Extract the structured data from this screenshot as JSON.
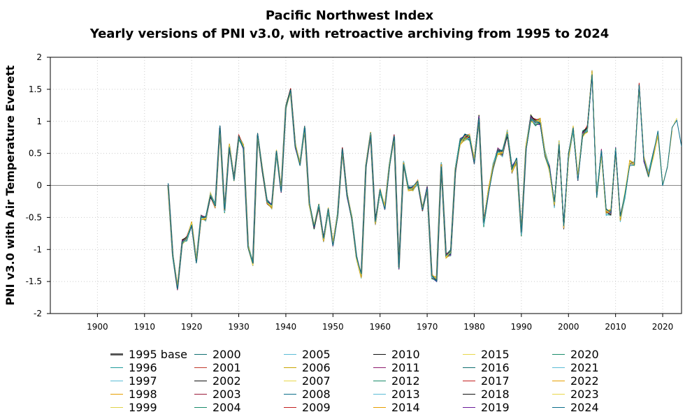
{
  "title": "Pacific Northwest Index",
  "subtitle": "Yearly versions of PNI v3.0, with retroactive archiving from 1995 to 2024",
  "chart_data": {
    "type": "line",
    "title": "Pacific Northwest Index",
    "subtitle": "Yearly versions of PNI v3.0, with retroactive archiving from 1995 to 2024",
    "xlabel": "",
    "ylabel": "PNI v3.0 with Air Temperature Everett",
    "xlim": [
      1890,
      2024
    ],
    "ylim": [
      -2,
      2
    ],
    "grid": true,
    "zero_line": true,
    "xticks": [
      1900,
      1910,
      1920,
      1930,
      1940,
      1950,
      1960,
      1970,
      1980,
      1990,
      2000,
      2010,
      2020
    ],
    "yticks": [
      2,
      1.5,
      1,
      0.5,
      0,
      -0.5,
      -1,
      -1.5,
      -2
    ],
    "legend_position": "bottom",
    "x": [
      1915,
      1916,
      1917,
      1918,
      1919,
      1920,
      1921,
      1922,
      1923,
      1924,
      1925,
      1926,
      1927,
      1928,
      1929,
      1930,
      1931,
      1932,
      1933,
      1934,
      1935,
      1936,
      1937,
      1938,
      1939,
      1940,
      1941,
      1942,
      1943,
      1944,
      1945,
      1946,
      1947,
      1948,
      1949,
      1950,
      1951,
      1952,
      1953,
      1954,
      1955,
      1956,
      1957,
      1958,
      1959,
      1960,
      1961,
      1962,
      1963,
      1964,
      1965,
      1966,
      1967,
      1968,
      1969,
      1970,
      1971,
      1972,
      1973,
      1974,
      1975,
      1976,
      1977,
      1978,
      1979,
      1980,
      1981,
      1982,
      1983,
      1984,
      1985,
      1986,
      1987,
      1988,
      1989,
      1990,
      1991,
      1992,
      1993,
      1994,
      1995,
      1996,
      1997,
      1998,
      1999,
      2000,
      2001,
      2002,
      2003,
      2004,
      2005,
      2006,
      2007,
      2008,
      2009,
      2010,
      2011,
      2012,
      2013,
      2014,
      2015,
      2016,
      2017,
      2018,
      2019,
      2020,
      2021,
      2022,
      2023,
      2024
    ],
    "base_values": [
      0,
      -1.1,
      -1.6,
      -0.88,
      -0.83,
      -0.6,
      -1.18,
      -0.5,
      -0.52,
      -0.15,
      -0.32,
      0.9,
      -0.4,
      0.62,
      0.1,
      0.75,
      0.6,
      -0.95,
      -1.22,
      0.78,
      0.25,
      -0.25,
      -0.33,
      0.52,
      -0.08,
      1.22,
      1.48,
      0.62,
      0.34,
      0.9,
      -0.3,
      -0.65,
      -0.32,
      -0.85,
      -0.38,
      -0.92,
      -0.45,
      0.56,
      -0.15,
      -0.5,
      -1.12,
      -1.42,
      0.3,
      0.8,
      -0.58,
      -0.08,
      -0.35,
      0.32,
      0.76,
      -1.28,
      0.35,
      -0.05,
      -0.05,
      0.05,
      -0.37,
      -0.05,
      -1.42,
      -1.47,
      0.33,
      -1.1,
      -1.05,
      0.25,
      0.68,
      0.75,
      0.75,
      0.38,
      1.05,
      -0.6,
      -0.1,
      0.3,
      0.53,
      0.5,
      0.82,
      0.25,
      0.38,
      -0.75,
      0.6,
      1.05,
      0.98,
      1.0,
      0.5,
      0.25,
      -0.3,
      0.65,
      -0.63,
      0.45,
      0.88,
      0.12,
      0.8,
      0.88,
      1.75,
      -0.15,
      0.52,
      -0.42,
      -0.42,
      0.55,
      -0.52,
      -0.15,
      0.35,
      0.35,
      1.55,
      0.42,
      0.17,
      0.48,
      0.8,
      -0.01,
      0.3,
      0.88,
      1.0,
      0.65
    ],
    "series": [
      {
        "name": "1995 base",
        "color": "#555555"
      },
      {
        "name": "1996",
        "color": "#1f9c9c"
      },
      {
        "name": "1997",
        "color": "#5bbcd6"
      },
      {
        "name": "1998",
        "color": "#e69f00"
      },
      {
        "name": "1999",
        "color": "#e0d24a"
      },
      {
        "name": "2000",
        "color": "#0f6f70"
      },
      {
        "name": "2001",
        "color": "#c0392b"
      },
      {
        "name": "2002",
        "color": "#111111"
      },
      {
        "name": "2003",
        "color": "#9b1b3a"
      },
      {
        "name": "2004",
        "color": "#1a8c6a"
      },
      {
        "name": "2005",
        "color": "#5bbcd6"
      },
      {
        "name": "2006",
        "color": "#c8a400"
      },
      {
        "name": "2007",
        "color": "#e8d84a"
      },
      {
        "name": "2008",
        "color": "#0b6e8a"
      },
      {
        "name": "2009",
        "color": "#c21f1f"
      },
      {
        "name": "2010",
        "color": "#111111"
      },
      {
        "name": "2011",
        "color": "#8e1b6e"
      },
      {
        "name": "2012",
        "color": "#1a8c6a"
      },
      {
        "name": "2013",
        "color": "#5bbcd6"
      },
      {
        "name": "2014",
        "color": "#e69f00"
      },
      {
        "name": "2015",
        "color": "#e8d84a"
      },
      {
        "name": "2016",
        "color": "#0f6f70"
      },
      {
        "name": "2017",
        "color": "#c21f1f"
      },
      {
        "name": "2018",
        "color": "#111111"
      },
      {
        "name": "2019",
        "color": "#6a1b9a"
      },
      {
        "name": "2020",
        "color": "#1a8c6a"
      },
      {
        "name": "2021",
        "color": "#5bbcd6"
      },
      {
        "name": "2022",
        "color": "#e69f00"
      },
      {
        "name": "2023",
        "color": "#e8d84a"
      },
      {
        "name": "2024",
        "color": "#0b6e8a"
      }
    ]
  }
}
